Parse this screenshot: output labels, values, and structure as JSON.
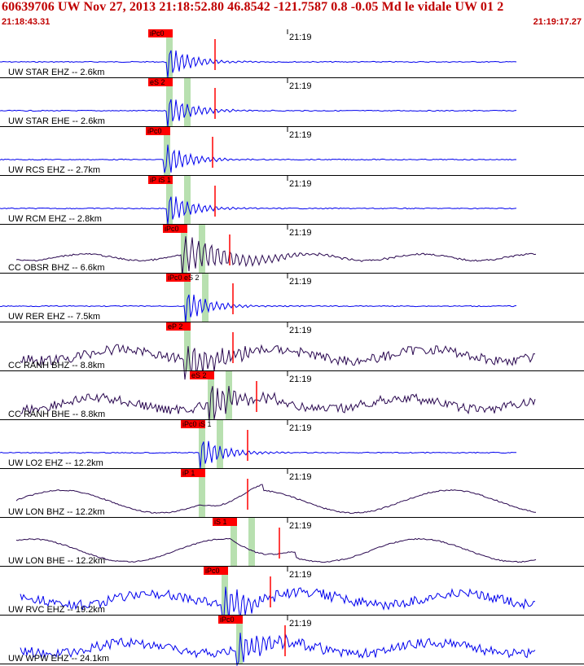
{
  "header": {
    "title": "60639706 UW Nov 27, 2013 21:18:52.80   46.8542 -121.7587  0.8 -0.05 Md le vidale UW 01   2",
    "start_time": "21:18:43.31",
    "end_time": "21:19:17.27"
  },
  "colors": {
    "bg": "#ffffff",
    "header_text": "#c00000",
    "trace_blue": "#0000ee",
    "trace_dark": "#2a0850",
    "pick": "#ff0000",
    "window": "#b8e0b0",
    "grid": "#000000"
  },
  "chart_data": {
    "type": "line",
    "title": "60639706 UW Nov 27, 2013 21:18:52.80   46.8542 -121.7587  0.8 -0.05 Md le vidale UW 01   2",
    "x_range": [
      "21:18:43.31",
      "21:19:17.27"
    ],
    "time_marker": "21:19",
    "series": [
      {
        "label": "UW STAR EHZ -- 2.6km",
        "pick_label": "iPc0",
        "color": "blue",
        "wave": "sharp",
        "pick_fraction": 0.285
      },
      {
        "label": "UW STAR EHE -- 2.6km",
        "pick_label": "eS 2",
        "color": "blue",
        "wave": "sharp",
        "pick_fraction": 0.285
      },
      {
        "label": "UW RCS EHZ -- 2.7km",
        "pick_label": "iPc0",
        "color": "blue",
        "wave": "sharp",
        "pick_fraction": 0.28
      },
      {
        "label": "UW RCM EHZ -- 2.8km",
        "pick_label": "iP iS 1",
        "color": "blue",
        "wave": "sharp",
        "pick_fraction": 0.285
      },
      {
        "label": "CC OBSR BHZ -- 6.6km",
        "pick_label": "iPc0",
        "color": "dark",
        "wave": "swell",
        "pick_fraction": 0.31
      },
      {
        "label": "UW RER EHZ -- 7.5km",
        "pick_label": "iPc0 eS 2",
        "color": "blue",
        "wave": "sharp",
        "pick_fraction": 0.315
      },
      {
        "label": "CC RANH BHZ -- 8.8km",
        "pick_label": "eP 2",
        "color": "dark",
        "wave": "noisy",
        "pick_fraction": 0.315
      },
      {
        "label": "CC RANH BHE -- 8.8km",
        "pick_label": "eS 2",
        "color": "dark",
        "wave": "noisy",
        "pick_fraction": 0.355
      },
      {
        "label": "UW LO2 EHZ -- 12.2km",
        "pick_label": "iPc0 iS 1",
        "color": "blue",
        "wave": "sharp",
        "pick_fraction": 0.34
      },
      {
        "label": "UW LON BHZ -- 12.2km",
        "pick_label": "iP 1",
        "color": "dark",
        "wave": "slow",
        "pick_fraction": 0.34
      },
      {
        "label": "UW LON BHE -- 12.2km",
        "pick_label": "iS 1",
        "color": "dark",
        "wave": "slow",
        "pick_fraction": 0.395
      },
      {
        "label": "UW RVC EHZ -- 19.2km",
        "pick_label": "iPc0",
        "color": "blue",
        "wave": "noisy",
        "pick_fraction": 0.38
      },
      {
        "label": "UW WPW EHZ -- 24.1km",
        "pick_label": "iPc0",
        "color": "blue",
        "wave": "noisy",
        "pick_fraction": 0.405
      }
    ]
  }
}
